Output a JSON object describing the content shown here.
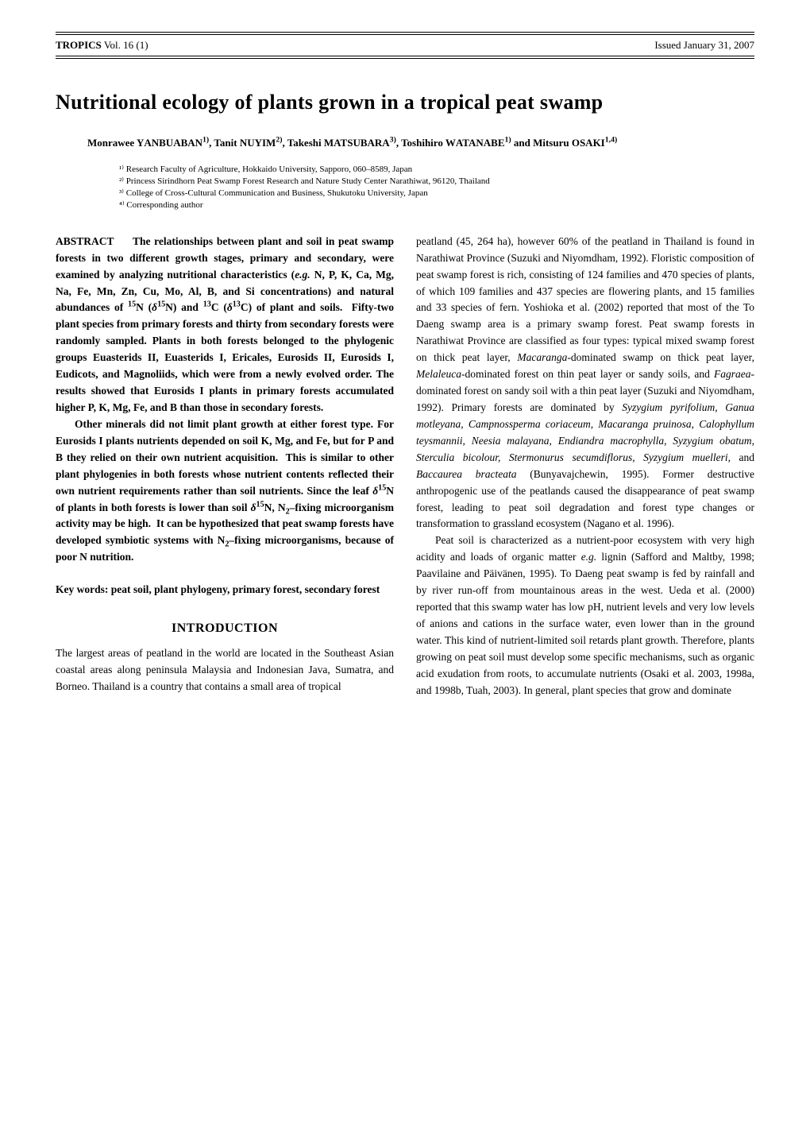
{
  "header": {
    "journal_label": "TROPICS",
    "volume": "Vol. 16 (1)",
    "issue_date": "Issued January 31, 2007"
  },
  "title": "Nutritional ecology of plants grown in a tropical peat swamp",
  "authors_line": "Monrawee YANBUABAN¹⁾, Tanit NUYIM²⁾, Takeshi MATSUBARA³⁾, Toshihiro WATANABE¹⁾ and Mitsuru OSAKI¹·⁴⁾",
  "affiliations": {
    "a1": "¹⁾ Research Faculty of Agriculture, Hokkaido University, Sapporo, 060–8589, Japan",
    "a2": "²⁾ Princess Sirindhorn Peat Swamp Forest Research and Nature Study Center Narathiwat, 96120, Thailand",
    "a3": "³⁾ College of Cross-Cultural Communication and Business, Shukutoku University, Japan",
    "a4": "⁴⁾ Corresponding author"
  },
  "abstract": {
    "label": "ABSTRACT",
    "p1": "The relationships between plant and soil in peat swamp forests in two different growth stages, primary and secondary, were examined by analyzing nutritional characteristics (e.g. N, P, K, Ca, Mg, Na, Fe, Mn, Zn, Cu, Mo, Al, B, and Si concentrations) and natural abundances of ¹⁵N (δ¹⁵N) and ¹³C (δ¹³C) of plant and soils.  Fifty-two plant species from primary forests and thirty from secondary forests were randomly sampled. Plants in both forests belonged to the phylogenic groups Euasterids II, Euasterids I, Ericales, Eurosids II, Eurosids I, Eudicots, and Magnoliids, which were from a newly evolved order. The results showed that Eurosids I plants in primary forests accumulated higher P, K, Mg, Fe, and B than those in secondary forests.",
    "p2": "Other minerals did not limit plant growth at either forest type. For Eurosids I plants nutrients depended on soil K, Mg, and Fe, but for P and B they relied on their own nutrient acquisition.  This is similar to other plant phylogenies in both forests whose nutrient contents reflected their own nutrient requirements rather than soil nutrients. Since the leaf δ¹⁵N of plants in both forests is lower than soil δ¹⁵N, N₂–fixing microorganism activity may be high.  It can be hypothesized that peat swamp forests have developed symbiotic systems with N₂–fixing microorganisms, because of poor N nutrition."
  },
  "keywords": "Key words: peat soil, plant phylogeny, primary forest, secondary forest",
  "intro_heading": "INTRODUCTION",
  "intro": {
    "p1a": "The largest areas of peatland in the world are located in the Southeast Asian coastal areas along peninsula Malaysia and Indonesian Java, Sumatra, and Borneo. Thailand is a country that contains a small area of tropical",
    "p1b": "peatland (45, 264 ha), however 60% of the peatland in Thailand is found in Narathiwat Province (Suzuki and Niyomdham, 1992). Floristic composition of peat swamp forest is rich, consisting of 124 families and 470 species of plants, of which 109 families and 437 species are flowering plants, and 15 families and 33 species of fern. Yoshioka et al. (2002) reported that most of the To Daeng swamp area is a primary swamp forest. Peat swamp forests in Narathiwat Province are classified as four types: typical mixed swamp forest on thick peat layer, Macaranga-dominated swamp on thick peat layer, Melaleuca-dominated forest on thin peat layer or sandy soils, and Fagraea-dominated forest on sandy soil with a thin peat layer (Suzuki and Niyomdham, 1992). Primary forests are dominated by Syzygium pyrifolium, Ganua motleyana, Campnossperma coriaceum, Macaranga pruinosa, Calophyllum teysmannii, Neesia malayana, Endiandra macrophylla, Syzygium obatum, Sterculia bicolour, Stermonurus secumdiflorus, Syzygium muelleri, and Baccaurea bracteata (Bunyavajchewin, 1995). Former destructive anthropogenic use of the peatlands caused the disappearance of peat swamp forest, leading to peat soil degradation and forest type changes or transformation to grassland ecosystem (Nagano et al. 1996).",
    "p2": "Peat soil is characterized as a nutrient-poor ecosystem with very high acidity and loads of organic matter e.g. lignin (Safford and Maltby, 1998; Paavilaine and Päivänen, 1995). To Daeng peat swamp is fed by rainfall and by river run-off from mountainous areas in the west. Ueda et al. (2000) reported that this swamp water has low pH, nutrient levels and very low levels of anions and cations in the surface water, even lower than in the ground water. This kind of nutrient-limited soil retards plant growth. Therefore, plants growing on peat soil must develop some specific mechanisms, such as organic acid exudation from roots, to accumulate nutrients (Osaki et al. 2003, 1998a, and 1998b, Tuah, 2003). In general, plant species that grow and dominate"
  }
}
